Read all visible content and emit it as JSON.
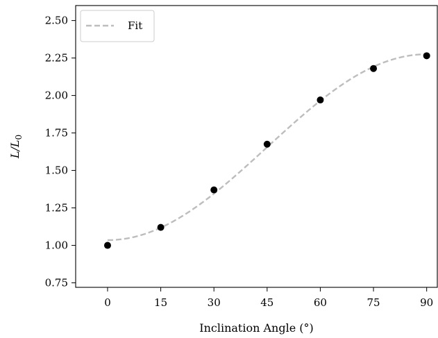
{
  "chart_data": {
    "type": "scatter",
    "xlabel": "Inclination Angle (°)",
    "ylabel": {
      "main": "L/L",
      "sub": "0"
    },
    "xlim": [
      -9,
      93
    ],
    "ylim": [
      0.72,
      2.6
    ],
    "xticks": [
      0,
      15,
      30,
      45,
      60,
      75,
      90
    ],
    "yticks": [
      0.75,
      1.0,
      1.25,
      1.5,
      1.75,
      2.0,
      2.25,
      2.5
    ],
    "xtick_labels": [
      "0",
      "15",
      "30",
      "45",
      "60",
      "75",
      "90"
    ],
    "ytick_labels": [
      "0.75",
      "1.00",
      "1.25",
      "1.50",
      "1.75",
      "2.00",
      "2.25",
      "2.50"
    ],
    "grid": false,
    "legend": {
      "placement": "top-left",
      "entries": [
        "Fit"
      ]
    },
    "series": [
      {
        "kind": "points",
        "color": "#000000",
        "x": [
          0,
          15,
          30,
          45,
          60,
          75,
          90
        ],
        "y": [
          1.0,
          1.12,
          1.37,
          1.675,
          1.97,
          2.18,
          2.265
        ]
      },
      {
        "name": "Fit",
        "kind": "line",
        "style": "dashed",
        "color": "#bdbdbd",
        "model": "a - b*cos(2*theta)",
        "params": {
          "a": 1.655,
          "b": 0.62
        },
        "x_range": [
          0,
          90
        ]
      }
    ]
  }
}
